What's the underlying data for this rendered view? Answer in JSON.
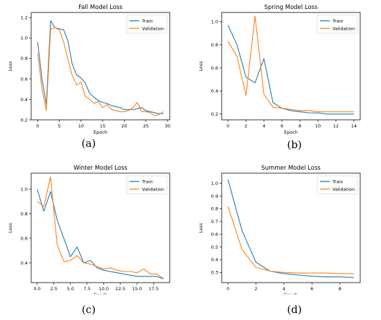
{
  "captions": [
    "(a)",
    "(b)",
    "(c)",
    "(d)"
  ],
  "colors": {
    "train": "#1f77b4",
    "validation": "#ff7f0e"
  },
  "chart_data": [
    {
      "type": "line",
      "title": "Fall Model Loss",
      "xlabel": "Epoch",
      "ylabel": "Loss",
      "xlim": [
        -1.5,
        30.5
      ],
      "ylim": [
        0.2,
        1.25
      ],
      "xticks": [
        0,
        5,
        10,
        15,
        20,
        25,
        30
      ],
      "yticks": [
        0.2,
        0.4,
        0.6,
        0.8,
        1.0,
        1.2
      ],
      "legend": "top-right",
      "series": [
        {
          "name": "Train",
          "x": [
            0,
            1,
            2,
            3,
            4,
            5,
            6,
            7,
            8,
            9,
            10,
            11,
            12,
            13,
            14,
            15,
            16,
            17,
            18,
            19,
            20,
            21,
            22,
            23,
            24,
            25,
            26,
            27,
            28,
            29
          ],
          "values": [
            0.96,
            0.6,
            0.35,
            1.17,
            1.1,
            1.09,
            1.08,
            0.97,
            0.74,
            0.64,
            0.61,
            0.56,
            0.46,
            0.42,
            0.39,
            0.37,
            0.36,
            0.34,
            0.33,
            0.32,
            0.3,
            0.3,
            0.3,
            0.31,
            0.32,
            0.29,
            0.28,
            0.27,
            0.26,
            0.26
          ]
        },
        {
          "name": "Validation",
          "x": [
            0,
            1,
            2,
            3,
            4,
            5,
            6,
            7,
            8,
            9,
            10,
            11,
            12,
            13,
            14,
            15,
            16,
            17,
            18,
            19,
            20,
            21,
            22,
            23,
            24,
            25,
            26,
            27,
            28,
            29
          ],
          "values": [
            0.85,
            0.5,
            0.29,
            1.09,
            1.1,
            1.08,
            0.96,
            0.79,
            0.63,
            0.54,
            0.57,
            0.43,
            0.4,
            0.36,
            0.38,
            0.32,
            0.35,
            0.3,
            0.29,
            0.28,
            0.28,
            0.29,
            0.32,
            0.37,
            0.28,
            0.28,
            0.27,
            0.24,
            0.25,
            0.28
          ]
        }
      ]
    },
    {
      "type": "line",
      "title": "Spring Model Loss",
      "xlabel": "Epoch",
      "ylabel": "Loss",
      "xlim": [
        -0.7,
        14.7
      ],
      "ylim": [
        0.15,
        1.08
      ],
      "xticks": [
        0,
        2,
        4,
        6,
        8,
        10,
        12,
        14
      ],
      "yticks": [
        0.2,
        0.4,
        0.6,
        0.8,
        1.0
      ],
      "legend": "top-right",
      "series": [
        {
          "name": "Train",
          "x": [
            0,
            1,
            2,
            3,
            4,
            5,
            6,
            7,
            8,
            9,
            10,
            11,
            12,
            13,
            14
          ],
          "values": [
            0.97,
            0.8,
            0.52,
            0.47,
            0.68,
            0.3,
            0.25,
            0.23,
            0.22,
            0.21,
            0.21,
            0.2,
            0.2,
            0.2,
            0.2
          ]
        },
        {
          "name": "Validation",
          "x": [
            0,
            1,
            2,
            3,
            4,
            5,
            6,
            7,
            8,
            9,
            10,
            11,
            12,
            13,
            14
          ],
          "values": [
            0.83,
            0.7,
            0.36,
            1.05,
            0.37,
            0.26,
            0.25,
            0.24,
            0.23,
            0.23,
            0.22,
            0.22,
            0.22,
            0.22,
            0.22
          ]
        }
      ]
    },
    {
      "type": "line",
      "title": "Winter Model Loss",
      "xlabel": "Epoch",
      "ylabel": "Loss",
      "xlim": [
        -0.9,
        19.9
      ],
      "ylim": [
        0.24,
        1.13
      ],
      "xticks": [
        0.0,
        2.5,
        5.0,
        7.5,
        10.0,
        12.5,
        15.0,
        17.5
      ],
      "yticks": [
        0.4,
        0.6,
        0.8,
        1.0
      ],
      "legend": "top-right",
      "series": [
        {
          "name": "Train",
          "x": [
            0,
            1,
            2,
            3,
            4,
            5,
            6,
            7,
            8,
            9,
            10,
            11,
            12,
            13,
            14,
            15,
            16,
            17,
            18,
            19
          ],
          "values": [
            1.0,
            0.82,
            0.98,
            0.75,
            0.6,
            0.45,
            0.53,
            0.4,
            0.42,
            0.36,
            0.34,
            0.33,
            0.32,
            0.31,
            0.3,
            0.29,
            0.29,
            0.29,
            0.29,
            0.27
          ]
        },
        {
          "name": "Validation",
          "x": [
            0,
            1,
            2,
            3,
            4,
            5,
            6,
            7,
            8,
            9,
            10,
            11,
            12,
            13,
            14,
            15,
            16,
            17,
            18,
            19
          ],
          "values": [
            0.9,
            0.86,
            1.1,
            0.55,
            0.41,
            0.42,
            0.46,
            0.4,
            0.39,
            0.37,
            0.35,
            0.36,
            0.34,
            0.33,
            0.33,
            0.32,
            0.35,
            0.31,
            0.31,
            0.27
          ]
        }
      ]
    },
    {
      "type": "line",
      "title": "Summer Model Loss",
      "xlabel": "Epoch",
      "ylabel": "Loss",
      "xlim": [
        -0.45,
        9.45
      ],
      "ylim": [
        0.22,
        1.08
      ],
      "xticks": [
        0,
        2,
        4,
        6,
        8
      ],
      "yticks": [
        0.3,
        0.4,
        0.5,
        0.6,
        0.7,
        0.8,
        0.9,
        1.0
      ],
      "legend": "top-right",
      "series": [
        {
          "name": "Train",
          "x": [
            0,
            1,
            2,
            3,
            4,
            5,
            6,
            7,
            8,
            9
          ],
          "values": [
            1.03,
            0.63,
            0.38,
            0.31,
            0.29,
            0.28,
            0.27,
            0.265,
            0.265,
            0.26
          ]
        },
        {
          "name": "Validation",
          "x": [
            0,
            1,
            2,
            3,
            4,
            5,
            6,
            7,
            8,
            9
          ],
          "values": [
            0.82,
            0.48,
            0.34,
            0.31,
            0.3,
            0.295,
            0.295,
            0.295,
            0.29,
            0.29
          ]
        }
      ]
    }
  ]
}
